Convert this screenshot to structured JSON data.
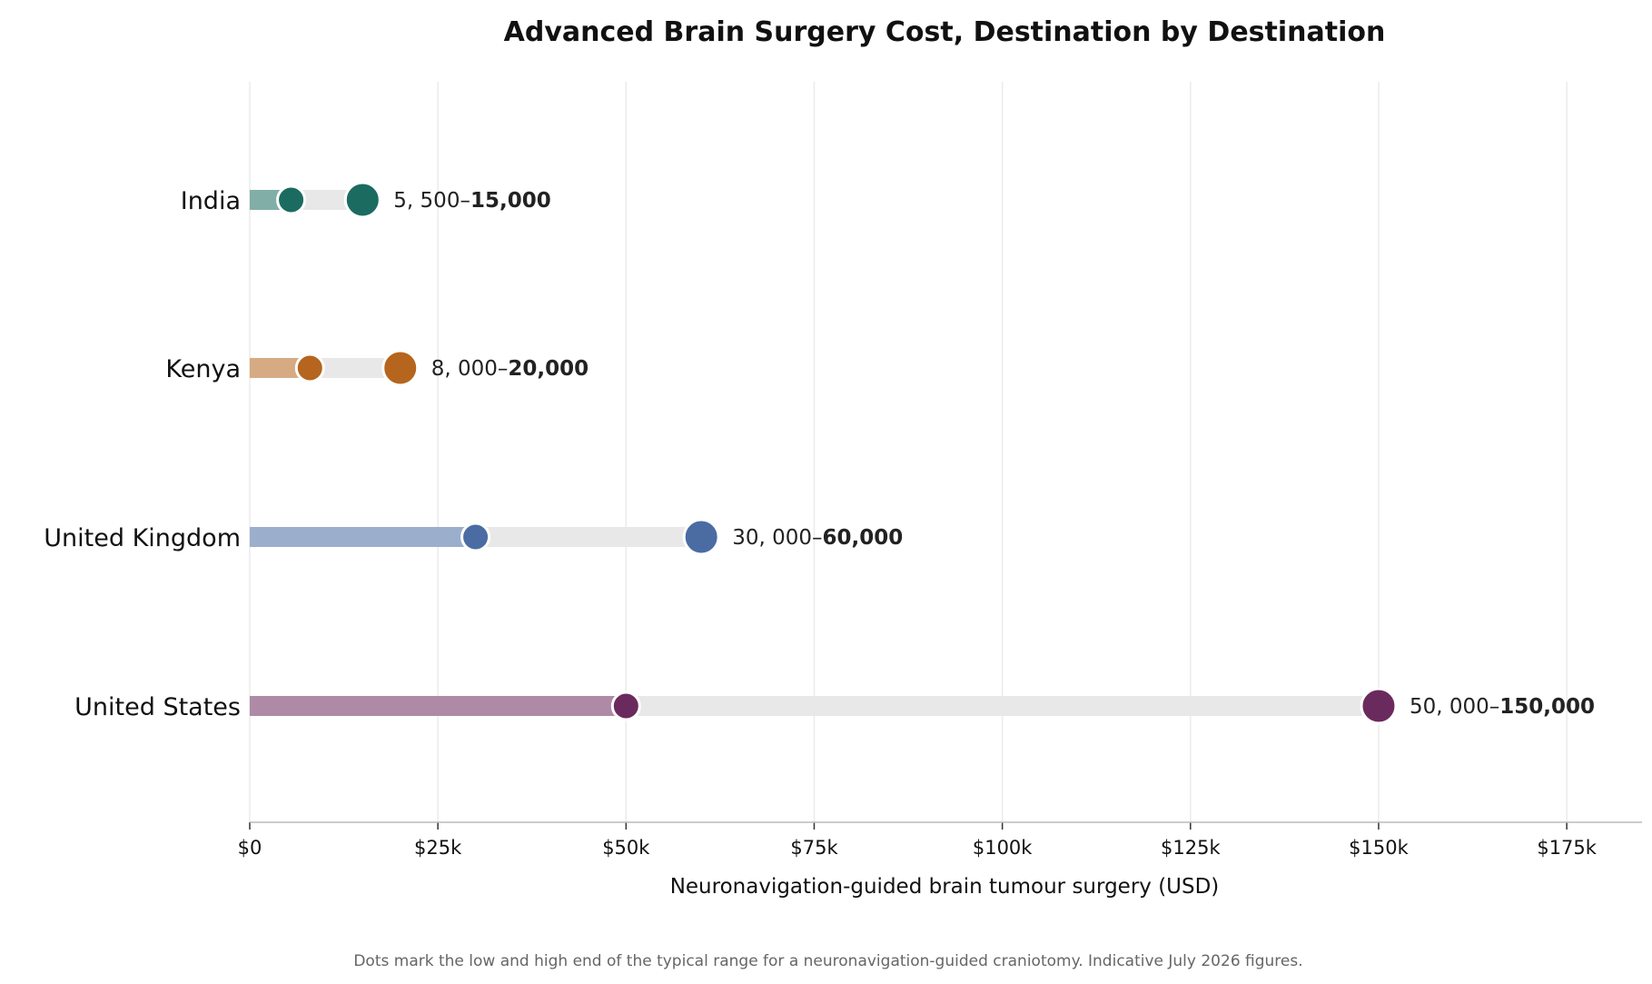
{
  "chart_data": {
    "type": "dumbbell",
    "title": "Advanced Brain Surgery Cost, Destination by Destination",
    "xlabel": "Neuronavigation-guided brain tumour surgery (USD)",
    "ylabel": "",
    "xlim": [
      0,
      185000
    ],
    "x_ticks": [
      0,
      25000,
      50000,
      75000,
      100000,
      125000,
      150000,
      175000
    ],
    "x_tick_labels": [
      "$0",
      "$25k",
      "$50k",
      "$75k",
      "$100k",
      "$125k",
      "$150k",
      "$175k"
    ],
    "grid": "vertical",
    "footnote": "Dots mark the low and high end of the typical range for a neuronavigation-guided craniotomy. Indicative July 2026 figures.",
    "categories": [
      "India",
      "Kenya",
      "United Kingdom",
      "United States"
    ],
    "series": [
      {
        "category": "India",
        "low": 5500,
        "high": 15000,
        "color": "#1b6b61",
        "label_low": "5, 500–",
        "label_high": "15,000"
      },
      {
        "category": "Kenya",
        "low": 8000,
        "high": 20000,
        "color": "#b5651d",
        "label_low": "8, 000–",
        "label_high": "20,000"
      },
      {
        "category": "United Kingdom",
        "low": 30000,
        "high": 60000,
        "color": "#4a6ca3",
        "label_low": "30, 000–",
        "label_high": "60,000"
      },
      {
        "category": "United States",
        "low": 50000,
        "high": 150000,
        "color": "#6b2a5e",
        "label_low": "50, 000–",
        "label_high": "150,000"
      }
    ]
  }
}
